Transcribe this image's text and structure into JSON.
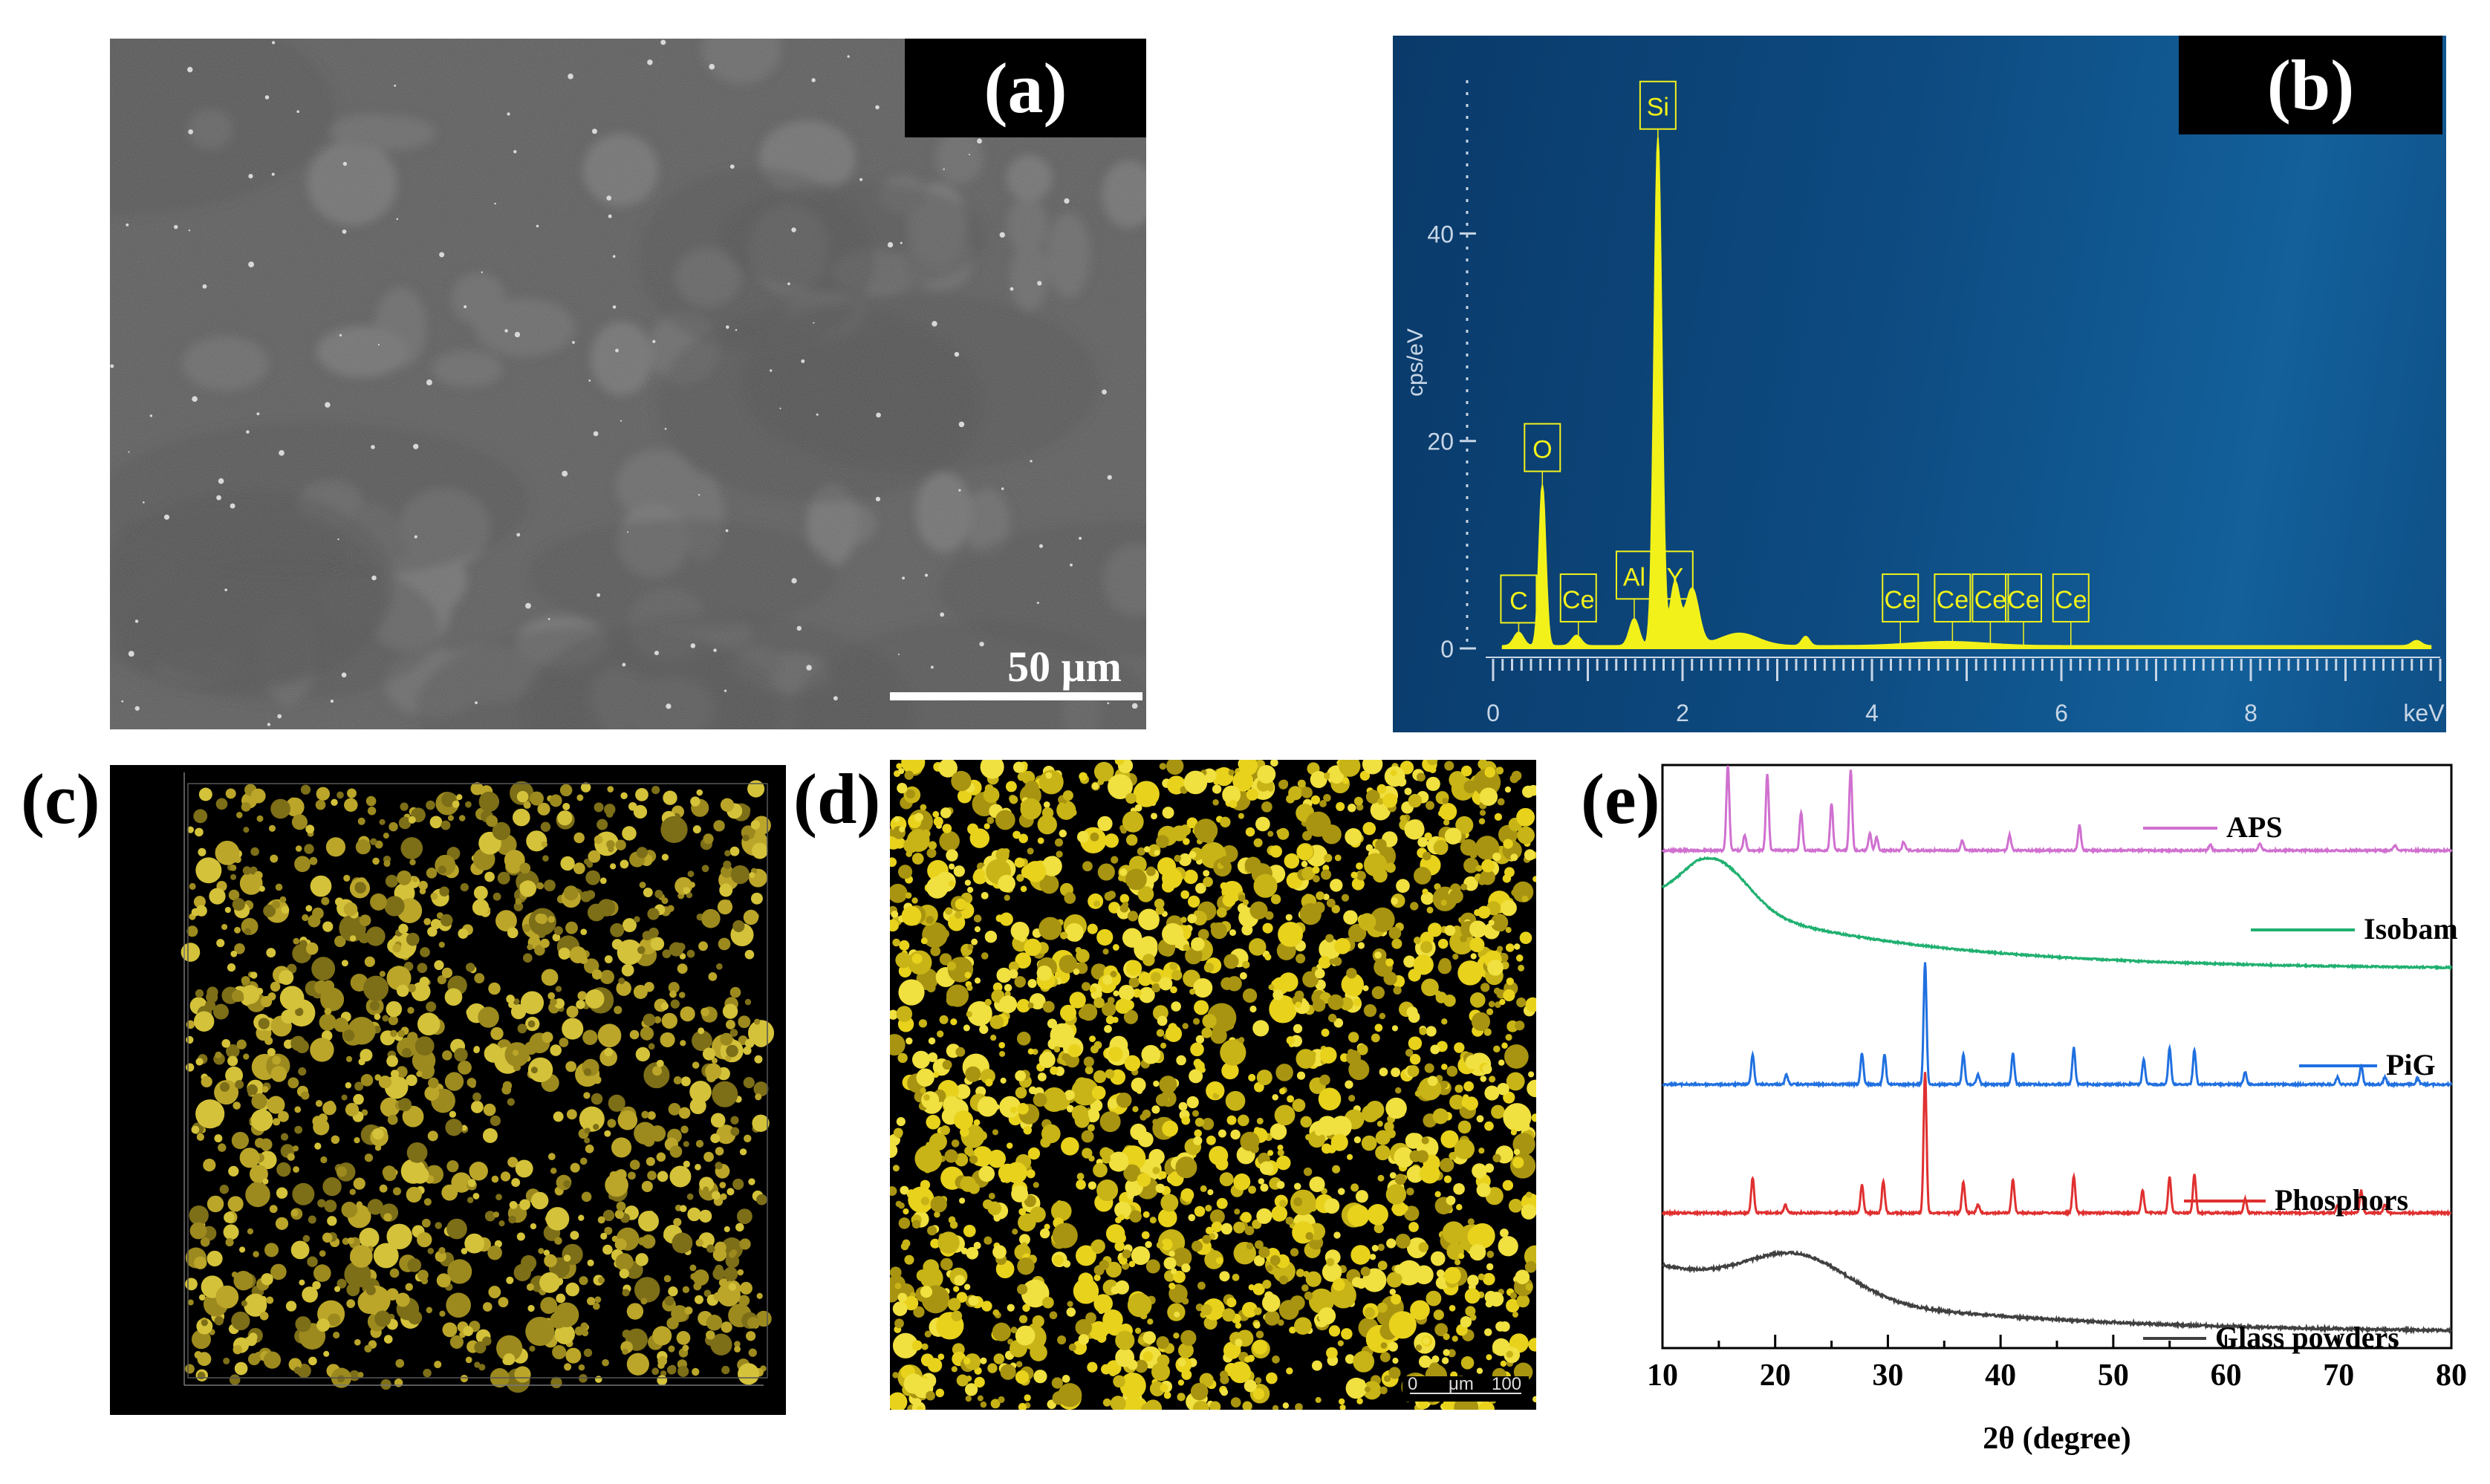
{
  "panels": {
    "a": {
      "label": "(a)",
      "scalebar": "50 μm"
    },
    "b": {
      "label": "(b)",
      "y_axis_label": "cps/eV",
      "x_axis_label": "keV",
      "y_ticks": [
        "0",
        "20",
        "40"
      ],
      "x_ticks": [
        "0",
        "2",
        "4",
        "6",
        "8"
      ],
      "element_labels": [
        "C",
        "O",
        "Ce",
        "Al",
        "Si",
        "Y",
        "Ce",
        "Ce",
        "Ce",
        "Ce",
        "Ce"
      ]
    },
    "c": {
      "label": "(c)"
    },
    "d": {
      "label": "(d)",
      "scalebar_left": "0",
      "scalebar_unit": "μm",
      "scalebar_right": "100"
    },
    "e": {
      "label": "(e)"
    }
  },
  "chart_data": {
    "type": "line",
    "xlabel": "2θ  (degree)",
    "ylabel": "",
    "xlim": [
      10,
      80
    ],
    "x_ticks": [
      "10",
      "20",
      "30",
      "40",
      "50",
      "60",
      "70",
      "80"
    ],
    "series": [
      {
        "name": "APS",
        "color": "#d070d0",
        "peaks": [
          [
            15.8,
            1.0
          ],
          [
            17.3,
            0.18
          ],
          [
            19.3,
            0.9
          ],
          [
            22.3,
            0.45
          ],
          [
            25.0,
            0.55
          ],
          [
            26.7,
            0.95
          ],
          [
            28.4,
            0.2
          ],
          [
            29.0,
            0.15
          ],
          [
            31.4,
            0.1
          ],
          [
            36.6,
            0.12
          ],
          [
            40.8,
            0.18
          ],
          [
            47.0,
            0.3
          ],
          [
            58.6,
            0.07
          ],
          [
            63.0,
            0.08
          ],
          [
            75.0,
            0.06
          ]
        ]
      },
      {
        "name": "Isobam",
        "color": "#20b070",
        "hump_center": 14.8
      },
      {
        "name": "PiG",
        "color": "#2070e0",
        "peaks": [
          [
            18.0,
            0.25
          ],
          [
            21.0,
            0.08
          ],
          [
            27.7,
            0.25
          ],
          [
            29.7,
            0.25
          ],
          [
            33.3,
            1.0
          ],
          [
            36.7,
            0.25
          ],
          [
            38.0,
            0.08
          ],
          [
            41.1,
            0.25
          ],
          [
            46.5,
            0.3
          ],
          [
            52.7,
            0.2
          ],
          [
            55.0,
            0.3
          ],
          [
            57.2,
            0.28
          ],
          [
            61.7,
            0.1
          ],
          [
            69.9,
            0.06
          ],
          [
            72.0,
            0.16
          ],
          [
            74.1,
            0.06
          ],
          [
            77.0,
            0.05
          ]
        ]
      },
      {
        "name": "Phosphors",
        "color": "#e03030",
        "peaks": [
          [
            18.0,
            0.25
          ],
          [
            20.9,
            0.06
          ],
          [
            27.7,
            0.2
          ],
          [
            29.6,
            0.23
          ],
          [
            33.3,
            1.0
          ],
          [
            36.7,
            0.22
          ],
          [
            38.0,
            0.06
          ],
          [
            41.1,
            0.24
          ],
          [
            46.5,
            0.26
          ],
          [
            52.6,
            0.16
          ],
          [
            55.0,
            0.26
          ],
          [
            57.2,
            0.28
          ],
          [
            61.7,
            0.1
          ],
          [
            69.9,
            0.06
          ],
          [
            72.0,
            0.16
          ],
          [
            74.1,
            0.06
          ]
        ]
      },
      {
        "name": "Glass powders",
        "color": "#404040",
        "hump_center": 22.0
      }
    ]
  }
}
